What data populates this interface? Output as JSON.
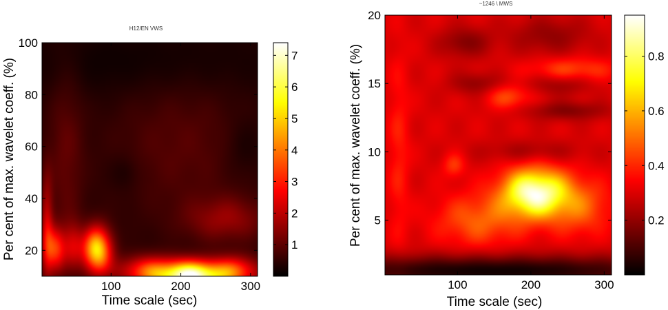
{
  "chart_data": [
    {
      "type": "heatmap",
      "title": "H12/EN VWS",
      "xlabel": "Time scale (sec)",
      "ylabel": "Per cent of max. wavelet coeff. (%)",
      "xlim": [
        1,
        310
      ],
      "ylim": [
        10,
        100
      ],
      "x_ticks": [
        100,
        200,
        300
      ],
      "y_ticks": [
        20,
        40,
        60,
        80,
        100
      ],
      "colormap": "hot",
      "colorbar": {
        "range": [
          0,
          7.4
        ],
        "ticks": [
          1,
          2,
          3,
          4,
          5,
          6,
          7
        ]
      },
      "background_value": 0.4,
      "blobs": [
        {
          "x": 80,
          "y": 20,
          "sx": 14,
          "sy": 6,
          "value": 4.9
        },
        {
          "x": 20,
          "y": 20,
          "sx": 10,
          "sy": 6,
          "value": 2.6
        },
        {
          "x": 45,
          "y": 22,
          "sx": 10,
          "sy": 6,
          "value": 1.6
        },
        {
          "x": 8,
          "y": 28,
          "sx": 6,
          "sy": 14,
          "value": 1.7
        },
        {
          "x": 215,
          "y": 10,
          "sx": 35,
          "sy": 4,
          "value": 6.8
        },
        {
          "x": 150,
          "y": 12,
          "sx": 30,
          "sy": 4,
          "value": 2.4
        },
        {
          "x": 280,
          "y": 12,
          "sx": 25,
          "sy": 4,
          "value": 2.4
        },
        {
          "x": 265,
          "y": 32,
          "sx": 40,
          "sy": 6,
          "value": 1.1
        },
        {
          "x": 35,
          "y": 55,
          "sx": 18,
          "sy": 25,
          "value": 0.6
        },
        {
          "x": 200,
          "y": 60,
          "sx": 70,
          "sy": 20,
          "value": 0.5
        },
        {
          "x": 120,
          "y": 50,
          "sx": 15,
          "sy": 5,
          "value": -0.3
        },
        {
          "x": 290,
          "y": 60,
          "sx": 20,
          "sy": 8,
          "value": -0.3
        },
        {
          "x": 150,
          "y": 92,
          "sx": 150,
          "sy": 10,
          "value": -0.3
        }
      ]
    },
    {
      "type": "heatmap",
      "title": "~1246 \\ MWS",
      "xlabel": "Time scale (sec)",
      "ylabel": "Per cent of max. wavelet coeff. (%)",
      "xlim": [
        1,
        310
      ],
      "ylim": [
        1,
        20
      ],
      "x_ticks": [
        100,
        200,
        300
      ],
      "y_ticks": [
        5,
        10,
        15,
        20
      ],
      "colormap": "hot",
      "colorbar": {
        "range": [
          0,
          0.95
        ],
        "ticks": [
          0.2,
          0.4,
          0.6,
          0.8
        ]
      },
      "background_value": 0.3,
      "blobs": [
        {
          "x": 205,
          "y": 7,
          "sx": 30,
          "sy": 1.2,
          "value": 0.62
        },
        {
          "x": 265,
          "y": 6,
          "sx": 30,
          "sy": 1.4,
          "value": 0.18
        },
        {
          "x": 130,
          "y": 5,
          "sx": 40,
          "sy": 1.3,
          "value": 0.18
        },
        {
          "x": 95,
          "y": 9,
          "sx": 10,
          "sy": 0.6,
          "value": 0.12
        },
        {
          "x": 170,
          "y": 14,
          "sx": 20,
          "sy": 0.6,
          "value": 0.15
        },
        {
          "x": 255,
          "y": 16,
          "sx": 40,
          "sy": 0.6,
          "value": 0.15
        },
        {
          "x": 110,
          "y": 18,
          "sx": 25,
          "sy": 0.8,
          "value": -0.12
        },
        {
          "x": 225,
          "y": 18.5,
          "sx": 40,
          "sy": 1.0,
          "value": -0.1
        },
        {
          "x": 125,
          "y": 15,
          "sx": 25,
          "sy": 0.6,
          "value": -0.1
        },
        {
          "x": 240,
          "y": 15,
          "sx": 30,
          "sy": 0.6,
          "value": -0.1
        },
        {
          "x": 250,
          "y": 13,
          "sx": 40,
          "sy": 0.5,
          "value": -0.12
        },
        {
          "x": 200,
          "y": 10,
          "sx": 50,
          "sy": 0.6,
          "value": -0.08
        },
        {
          "x": 150,
          "y": 1.3,
          "sx": 200,
          "sy": 0.8,
          "value": -0.28
        },
        {
          "x": 20,
          "y": 10,
          "sx": 10,
          "sy": 5,
          "value": 0.08
        }
      ]
    }
  ]
}
